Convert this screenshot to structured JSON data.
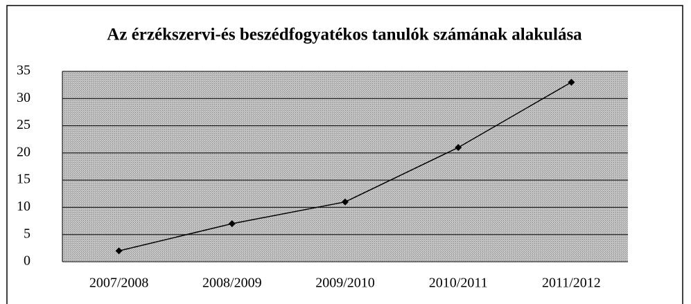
{
  "chart_data": {
    "type": "line",
    "title": "Az érzékszervi-és beszédfogyatékos tanulók számának alakulása",
    "categories": [
      "2007/2008",
      "2008/2009",
      "2009/2010",
      "2010/2011",
      "2011/2012"
    ],
    "series": [
      {
        "name": null,
        "color": "#000000",
        "values": [
          2,
          7,
          11,
          21,
          33
        ]
      }
    ],
    "ylim": [
      0,
      35
    ],
    "yticks": [
      0,
      5,
      10,
      15,
      20,
      25,
      30,
      35
    ],
    "grid": true
  }
}
